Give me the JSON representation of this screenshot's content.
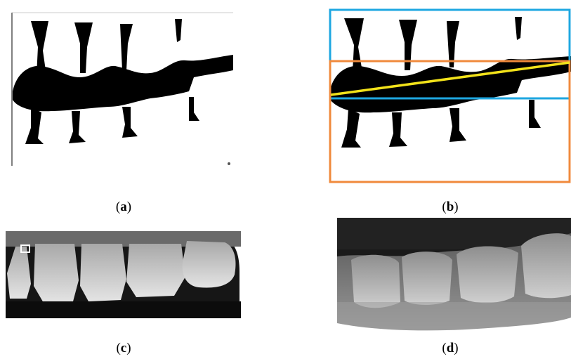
{
  "figure": {
    "captions": {
      "a": "a",
      "b": "b",
      "c": "c",
      "d": "d"
    },
    "overlay_colors": {
      "upper_region_box": "#1ea7e1",
      "lower_region_box": "#f08a3c",
      "occlusal_line": "#f2e21a"
    }
  }
}
